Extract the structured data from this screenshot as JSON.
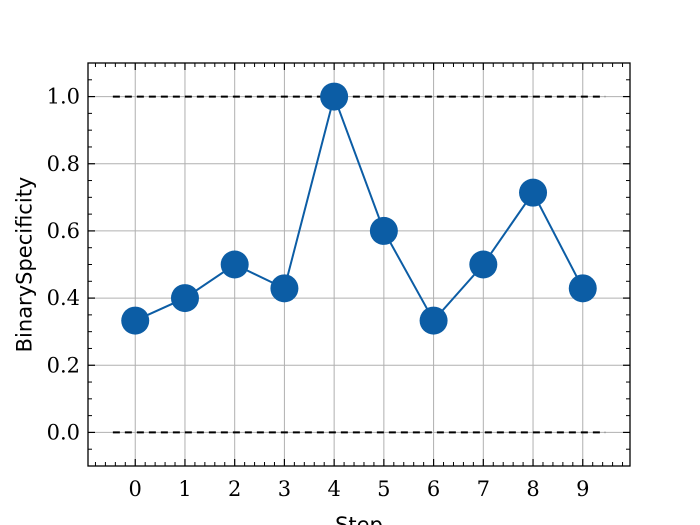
{
  "chart_data": {
    "type": "line",
    "title": "",
    "xlabel": "Step",
    "ylabel": "BinarySpecificity",
    "x": [
      0,
      1,
      2,
      3,
      4,
      5,
      6,
      7,
      8,
      9
    ],
    "x_ticks": [
      "0",
      "1",
      "2",
      "3",
      "4",
      "5",
      "6",
      "7",
      "8",
      "9"
    ],
    "y_ticks": [
      "0.0",
      "0.2",
      "0.4",
      "0.6",
      "0.8",
      "1.0"
    ],
    "xlim": [
      -0.95,
      9.95
    ],
    "ylim": [
      -0.1,
      1.1
    ],
    "grid": true,
    "series": [
      {
        "values": [
          0.333,
          0.4,
          0.5,
          0.429,
          1.0,
          0.6,
          0.333,
          0.5,
          0.714,
          0.429
        ],
        "color": "#0c5da5",
        "marker": "circle"
      }
    ],
    "reference_lines": [
      {
        "y": 1.0,
        "x_range": [
          -0.45,
          9.45
        ],
        "style": "dashed",
        "color": "#000000"
      },
      {
        "y": 0.0,
        "x_range": [
          -0.45,
          9.45
        ],
        "style": "dashed",
        "color": "#000000"
      }
    ]
  }
}
